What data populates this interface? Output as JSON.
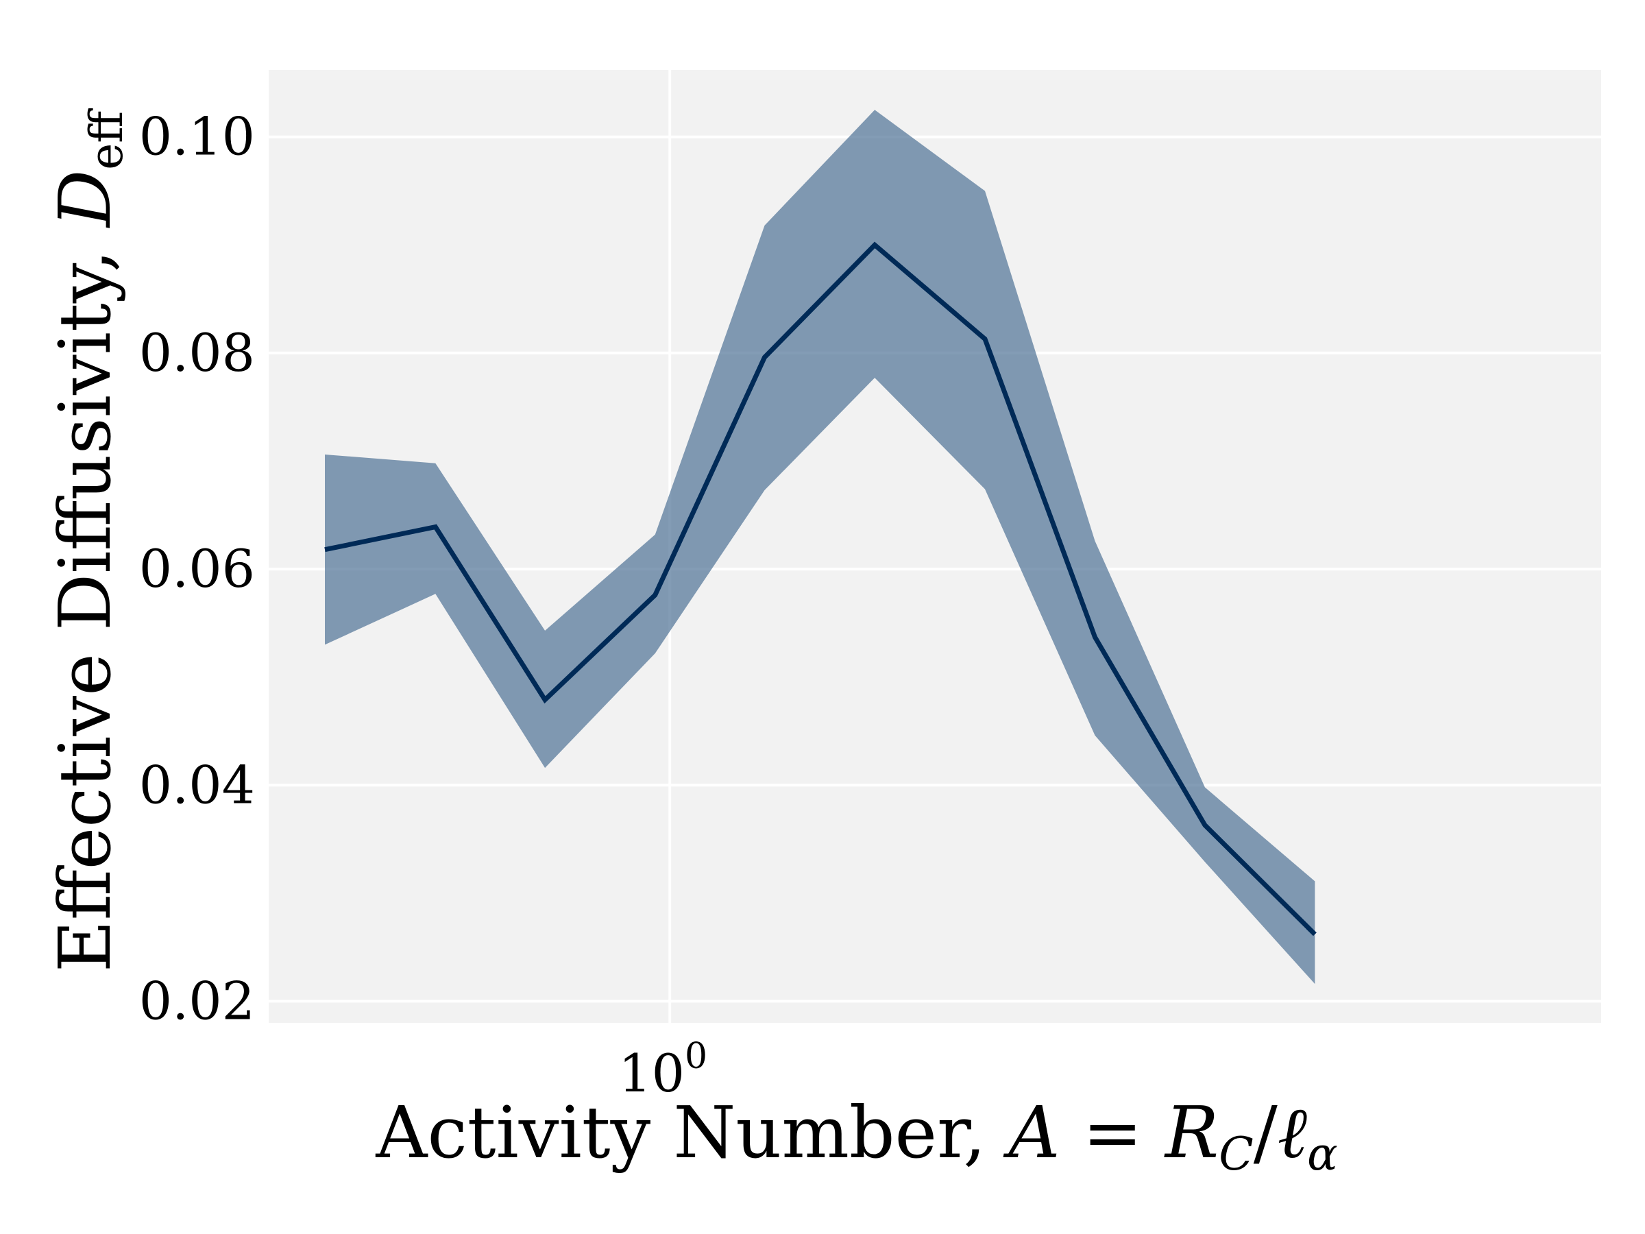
{
  "chart_data": {
    "type": "line",
    "title": "",
    "xlabel": "Activity Number, A = R_C/ℓ_α",
    "xlabel_parts": {
      "prefix": "Activity Number, ",
      "var": "A",
      "eq": " = ",
      "rvar": "R",
      "rsub": "C",
      "slash": "/",
      "lvar": "ℓ",
      "lsub": "α"
    },
    "ylabel": "Effective Diffusivity, D_eff",
    "ylabel_parts": {
      "prefix": "Effective Diffusivity, ",
      "var": "D",
      "sub": "eff"
    },
    "xscale": "log",
    "xlim": [
      0.5,
      5.0
    ],
    "ylim": [
      0.018,
      0.1062
    ],
    "grid": true,
    "background": "#f2f2f2",
    "x_ticks": [
      {
        "value": 1.0,
        "base": "10",
        "exp": "0"
      }
    ],
    "y_ticks": [
      {
        "value": 0.02,
        "label": "0.02"
      },
      {
        "value": 0.04,
        "label": "0.04"
      },
      {
        "value": 0.06,
        "label": "0.06"
      },
      {
        "value": 0.08,
        "label": "0.08"
      },
      {
        "value": 0.1,
        "label": "0.10"
      }
    ],
    "x": [
      0.551,
      0.667,
      0.806,
      0.975,
      1.178,
      1.425,
      1.724,
      2.085,
      2.521,
      3.049
    ],
    "series": [
      {
        "values": [
          0.0618,
          0.0639,
          0.0479,
          0.0576,
          0.0796,
          0.09,
          0.0813,
          0.0537,
          0.0363,
          0.0262
        ],
        "color": "#002a57"
      }
    ],
    "band": {
      "lower": [
        0.053,
        0.0577,
        0.0416,
        0.0522,
        0.0673,
        0.0777,
        0.0674,
        0.0446,
        0.0329,
        0.0216
      ],
      "upper": [
        0.0706,
        0.0698,
        0.0543,
        0.0632,
        0.0918,
        0.1025,
        0.095,
        0.0626,
        0.0398,
        0.0311
      ],
      "color": "#4f7295",
      "opacity": 0.7
    }
  }
}
